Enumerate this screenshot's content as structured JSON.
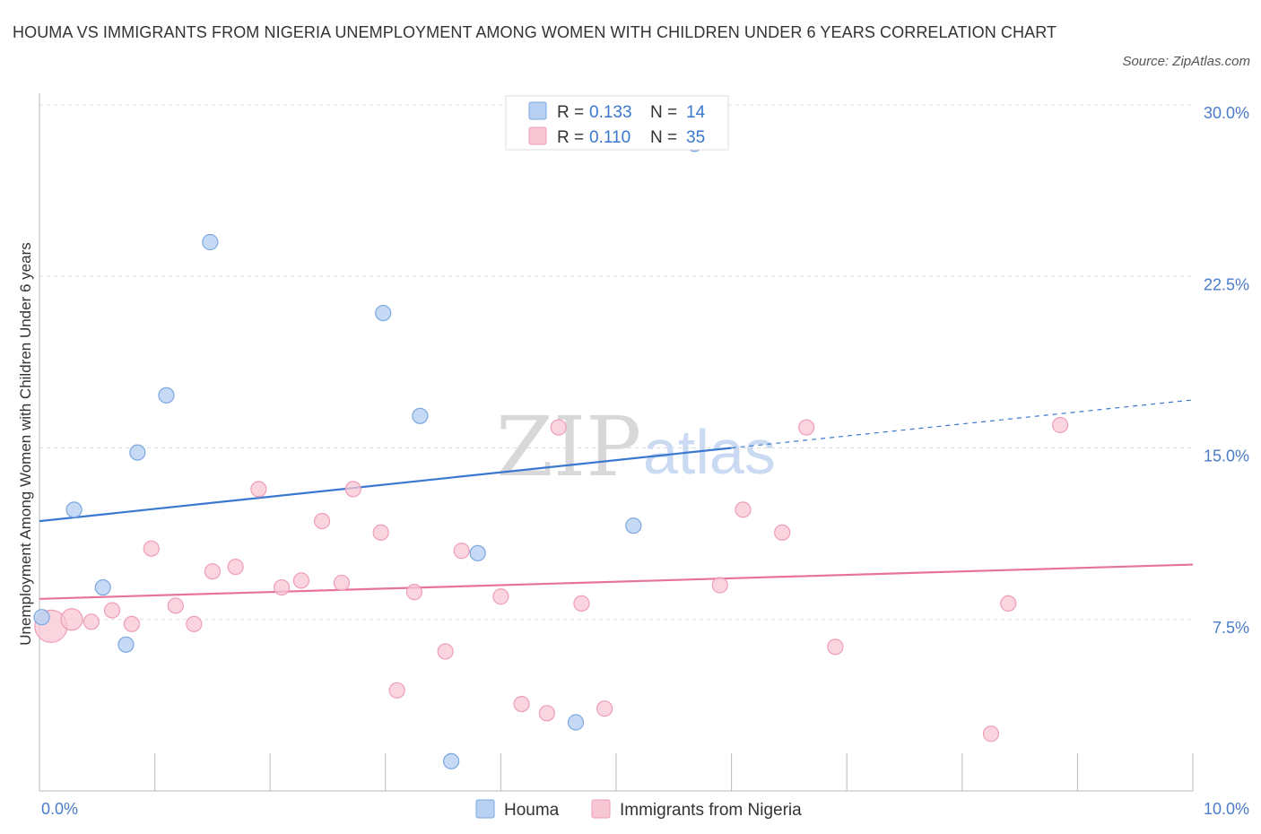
{
  "title": "HOUMA VS IMMIGRANTS FROM NIGERIA UNEMPLOYMENT AMONG WOMEN WITH CHILDREN UNDER 6 YEARS CORRELATION CHART",
  "source": "Source: ZipAtlas.com",
  "watermark": {
    "zip": "ZIP",
    "atlas": "atlas"
  },
  "colors": {
    "houma_fill": "#b8d1f3",
    "houma_stroke": "#7aa7e0",
    "houma_line": "#3a78d0",
    "nigeria_fill": "#f8c7d6",
    "nigeria_stroke": "#ee9db5",
    "nigeria_line": "#e8739a",
    "tick_label": "#4a7cc9",
    "grid": "#dddddd"
  },
  "legend": {
    "rows": [
      {
        "r_label": "R = ",
        "r_value": "0.133",
        "n_label": "N = ",
        "n_value": "14"
      },
      {
        "r_label": "R = ",
        "r_value": "0.110",
        "n_label": "N = ",
        "n_value": "35"
      }
    ]
  },
  "chart_data": {
    "type": "scatter",
    "title": "HOUMA VS IMMIGRANTS FROM NIGERIA UNEMPLOYMENT AMONG WOMEN WITH CHILDREN UNDER 6 YEARS CORRELATION CHART",
    "xlabel": "",
    "ylabel": "Unemployment Among Women with Children Under 6 years",
    "xlim": [
      0,
      10
    ],
    "ylim": [
      0,
      30
    ],
    "x_tick_labels": [
      "0.0%",
      "10.0%"
    ],
    "y_ticks": [
      7.5,
      15.0,
      22.5,
      30.0
    ],
    "y_tick_labels": [
      "7.5%",
      "15.0%",
      "22.5%",
      "30.0%"
    ],
    "grid": true,
    "legend_position": "top-center",
    "series": [
      {
        "name": "Houma",
        "points": [
          [
            0.02,
            7.6
          ],
          [
            0.3,
            12.3
          ],
          [
            0.55,
            8.9
          ],
          [
            0.75,
            6.4
          ],
          [
            0.85,
            14.8
          ],
          [
            1.1,
            17.3
          ],
          [
            1.48,
            24.0
          ],
          [
            2.98,
            20.9
          ],
          [
            3.3,
            16.4
          ],
          [
            3.57,
            1.3
          ],
          [
            3.8,
            10.4
          ],
          [
            4.65,
            3.0
          ],
          [
            5.15,
            11.6
          ],
          [
            5.68,
            28.3
          ]
        ],
        "trend": {
          "x": [
            0,
            6.0
          ],
          "y": [
            11.8,
            15.0
          ],
          "dashed_to": [
            10.0,
            17.1
          ]
        }
      },
      {
        "name": "Immigrants from Nigeria",
        "points": [
          [
            0.1,
            7.2
          ],
          [
            0.28,
            7.5
          ],
          [
            0.45,
            7.4
          ],
          [
            0.63,
            7.9
          ],
          [
            0.8,
            7.3
          ],
          [
            0.97,
            10.6
          ],
          [
            1.18,
            8.1
          ],
          [
            1.34,
            7.3
          ],
          [
            1.5,
            9.6
          ],
          [
            1.7,
            9.8
          ],
          [
            1.9,
            13.2
          ],
          [
            2.1,
            8.9
          ],
          [
            2.27,
            9.2
          ],
          [
            2.45,
            11.8
          ],
          [
            2.62,
            9.1
          ],
          [
            2.72,
            13.2
          ],
          [
            2.96,
            11.3
          ],
          [
            3.1,
            4.4
          ],
          [
            3.25,
            8.7
          ],
          [
            3.52,
            6.1
          ],
          [
            3.66,
            10.5
          ],
          [
            4.0,
            8.5
          ],
          [
            4.18,
            3.8
          ],
          [
            4.4,
            3.4
          ],
          [
            4.5,
            15.9
          ],
          [
            4.7,
            8.2
          ],
          [
            4.9,
            3.6
          ],
          [
            5.9,
            9.0
          ],
          [
            6.1,
            12.3
          ],
          [
            6.44,
            11.3
          ],
          [
            6.65,
            15.9
          ],
          [
            6.9,
            6.3
          ],
          [
            8.25,
            2.5
          ],
          [
            8.4,
            8.2
          ],
          [
            8.85,
            16.0
          ]
        ],
        "trend": {
          "x": [
            0,
            10.0
          ],
          "y": [
            8.4,
            9.9
          ]
        }
      }
    ]
  },
  "bottom_legend": [
    {
      "label": "Houma"
    },
    {
      "label": "Immigrants from Nigeria"
    }
  ]
}
